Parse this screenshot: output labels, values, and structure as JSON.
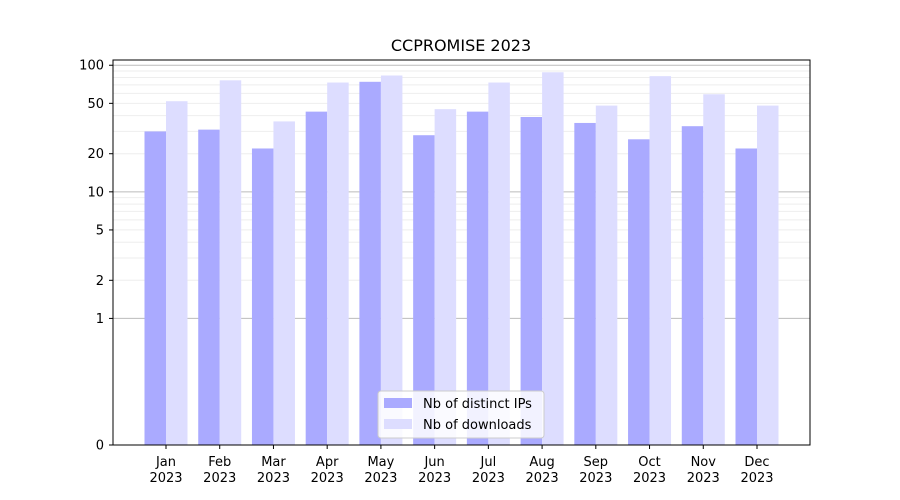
{
  "chart_data": {
    "type": "bar",
    "title": "CCPROMISE 2023",
    "xlabel": "",
    "ylabel": "",
    "yscale": "symlog",
    "ylim": [
      0,
      110
    ],
    "yticks": [
      0,
      1,
      2,
      5,
      10,
      20,
      50,
      100
    ],
    "grid": "horizontal",
    "legend_position": "bottom-center",
    "categories": [
      [
        "Jan",
        "2023"
      ],
      [
        "Feb",
        "2023"
      ],
      [
        "Mar",
        "2023"
      ],
      [
        "Apr",
        "2023"
      ],
      [
        "May",
        "2023"
      ],
      [
        "Jun",
        "2023"
      ],
      [
        "Jul",
        "2023"
      ],
      [
        "Aug",
        "2023"
      ],
      [
        "Sep",
        "2023"
      ],
      [
        "Oct",
        "2023"
      ],
      [
        "Nov",
        "2023"
      ],
      [
        "Dec",
        "2023"
      ]
    ],
    "series": [
      {
        "name": "Nb of distinct IPs",
        "color": "#aaaaff",
        "values": [
          30,
          31,
          22,
          43,
          74,
          28,
          43,
          39,
          35,
          26,
          33,
          22
        ]
      },
      {
        "name": "Nb of downloads",
        "color": "#ddddff",
        "values": [
          52,
          76,
          36,
          73,
          83,
          45,
          73,
          88,
          48,
          82,
          59,
          48
        ]
      }
    ]
  }
}
